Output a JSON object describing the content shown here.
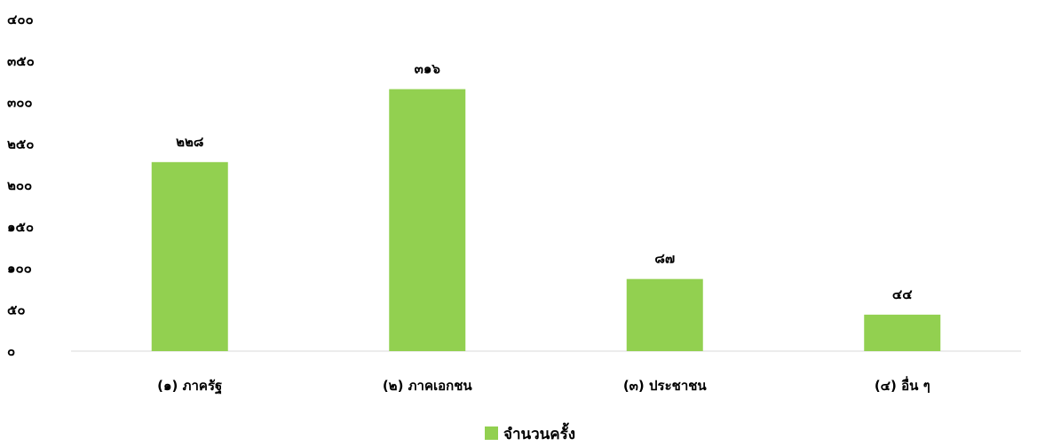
{
  "chart_data": {
    "type": "bar",
    "categories": [
      "(๑) ภาครัฐ",
      "(๒) ภาคเอกชน",
      "(๓) ประชาชน",
      "(๔) อื่น ๆ"
    ],
    "series": [
      {
        "name": "จำนวนครั้ง",
        "values": [
          228,
          316,
          87,
          44
        ],
        "value_labels": [
          "๒๒๘",
          "๓๑๖",
          "๘๗",
          "๔๔"
        ],
        "color": "#92d050"
      }
    ],
    "ylim": [
      0,
      400
    ],
    "yticks": [
      0,
      50,
      100,
      150,
      200,
      250,
      300,
      350,
      400
    ],
    "ytick_labels": [
      "๐",
      "๕๐",
      "๑๐๐",
      "๑๕๐",
      "๒๐๐",
      "๒๕๐",
      "๓๐๐",
      "๓๕๐",
      "๔๐๐"
    ],
    "grid": false,
    "legend_position": "bottom",
    "axis_color": "#d9d9d9"
  }
}
